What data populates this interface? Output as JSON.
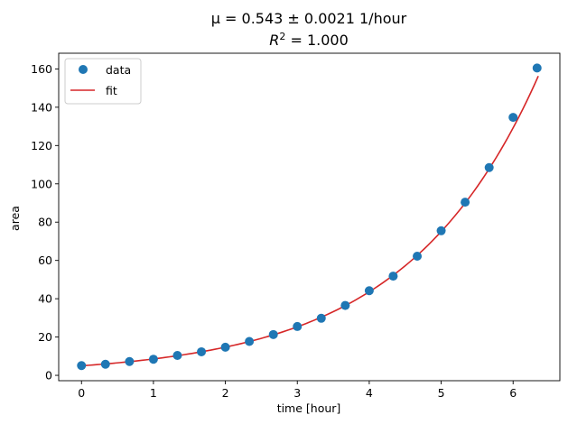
{
  "chart_data": {
    "type": "scatter",
    "title_line1": "μ = 0.543 ± 0.0021 1/hour",
    "title_line2": "R",
    "title_line2_sup": "2",
    "title_line2_rest": " = 1.000",
    "xlabel": "time [hour]",
    "ylabel": "area",
    "xlim": [
      -0.317,
      6.65
    ],
    "ylim": [
      -2.8,
      168.2
    ],
    "x_ticks": [
      0,
      1,
      2,
      3,
      4,
      5,
      6
    ],
    "y_ticks": [
      0,
      20,
      40,
      60,
      80,
      100,
      120,
      140,
      160
    ],
    "grid": false,
    "legend_position": "top-left",
    "legend": [
      "data",
      "fit"
    ],
    "series": [
      {
        "name": "data",
        "kind": "scatter",
        "color": "#1f77b4",
        "x": [
          0,
          0.333,
          0.667,
          1.0,
          1.333,
          1.667,
          2.0,
          2.333,
          2.667,
          3.0,
          3.333,
          3.667,
          4.0,
          4.333,
          4.667,
          5.0,
          5.333,
          5.667,
          6.0,
          6.333
        ],
        "y": [
          5.1,
          5.8,
          7.2,
          8.4,
          10.4,
          12.3,
          14.7,
          17.7,
          21.3,
          25.5,
          29.8,
          36.5,
          44.2,
          51.8,
          62.2,
          75.5,
          90.4,
          108.5,
          134.7,
          160.5
        ]
      },
      {
        "name": "fit",
        "kind": "line",
        "color": "#d62728",
        "model": "exponential",
        "a": 4.97,
        "mu": 0.543,
        "x_range": [
          0,
          6.35
        ]
      }
    ]
  }
}
